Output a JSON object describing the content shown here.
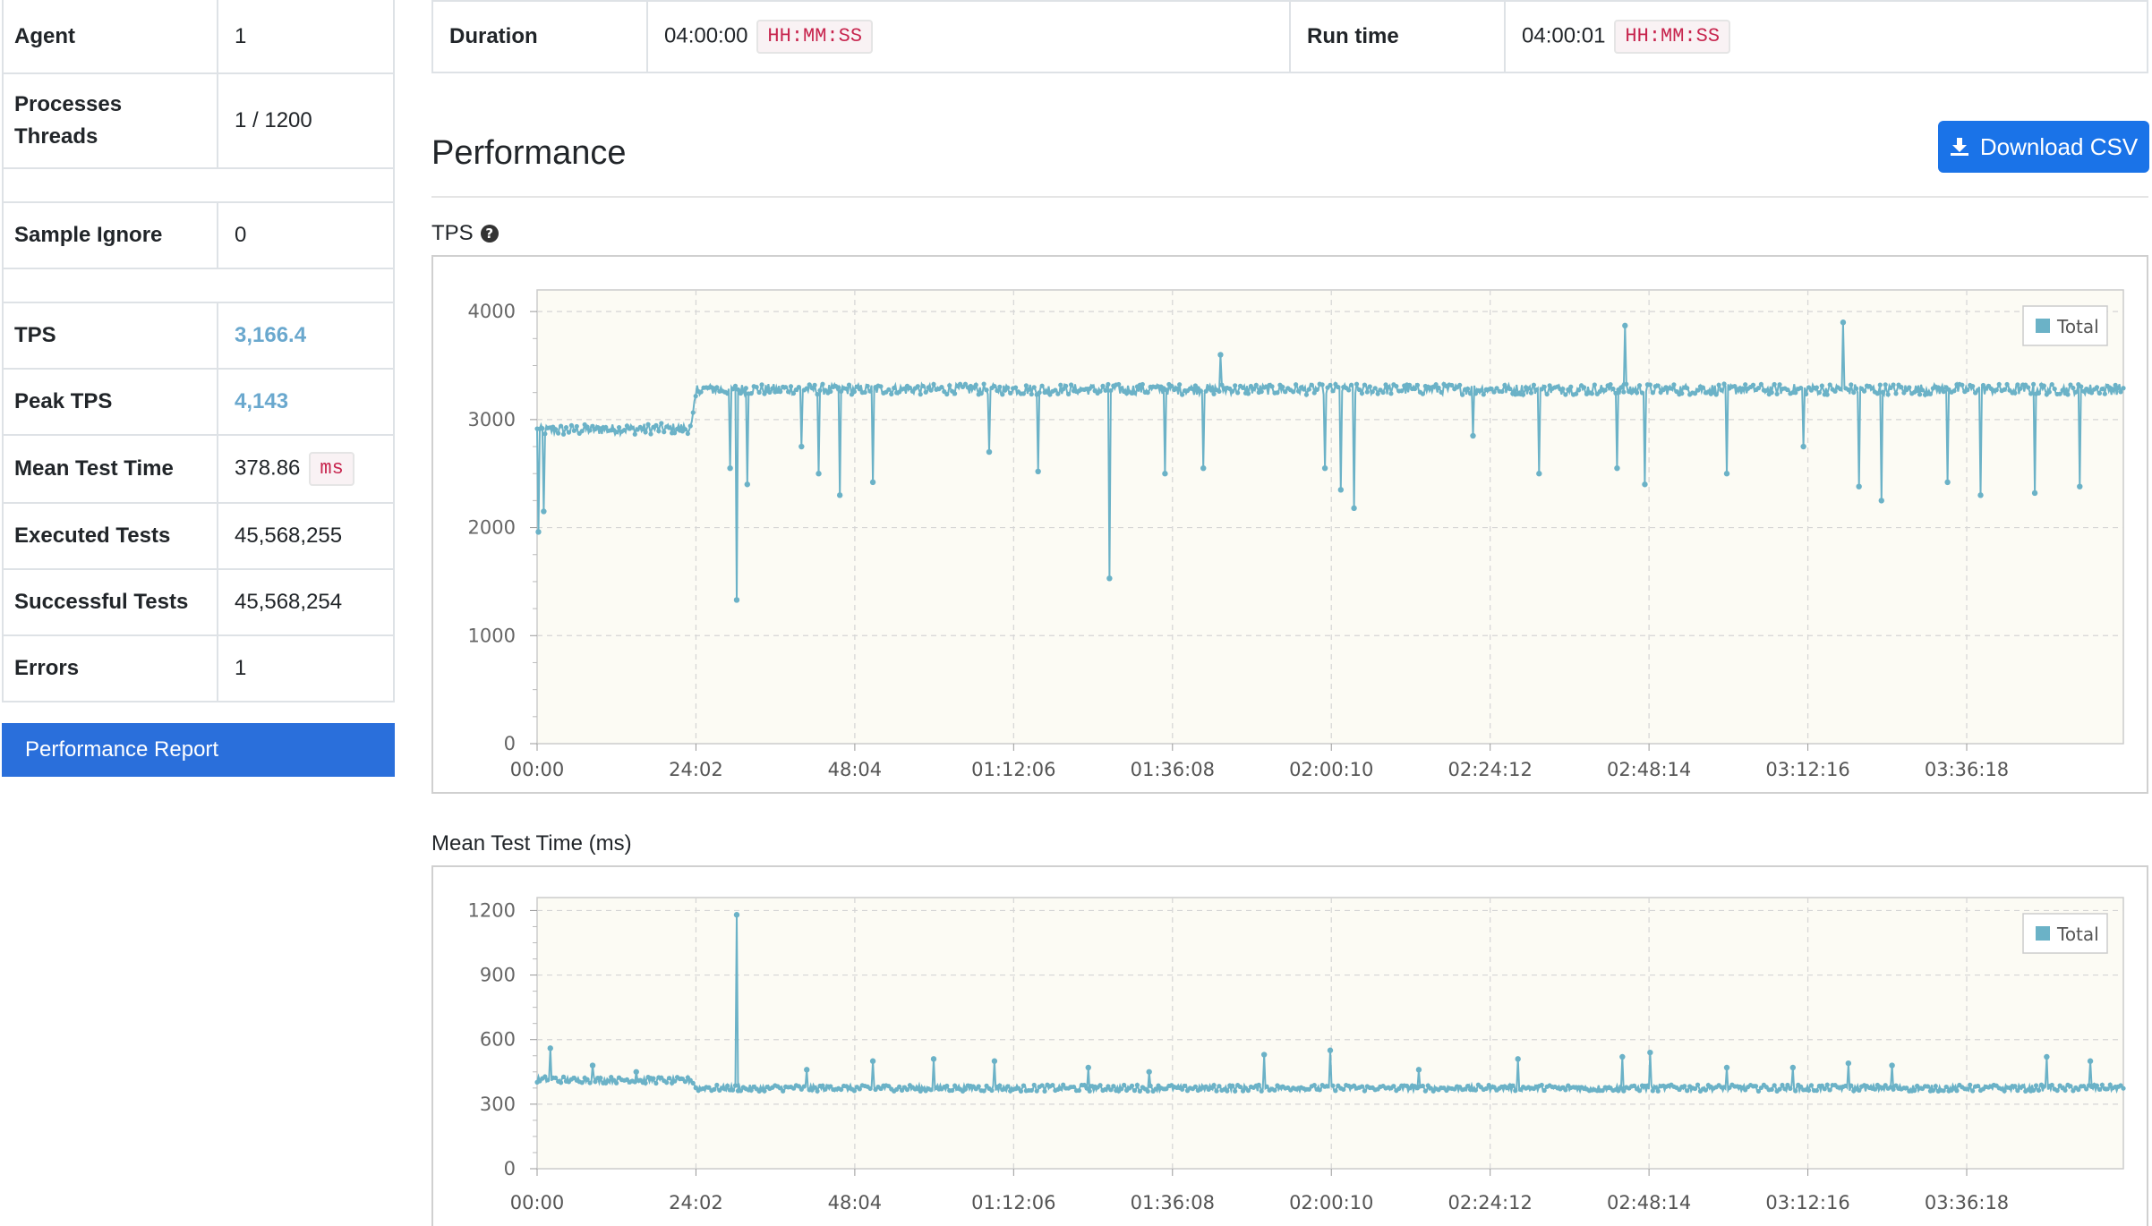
{
  "summary": {
    "agent": {
      "label": "Agent",
      "value": "1"
    },
    "processes": {
      "label": "Processes Threads",
      "value": "1 / 1200"
    },
    "sample_ignore": {
      "label": "Sample Ignore",
      "value": "0"
    },
    "tps": {
      "label": "TPS",
      "value": "3,166.4"
    },
    "peak_tps": {
      "label": "Peak TPS",
      "value": "4,143"
    },
    "mean_test_time": {
      "label": "Mean Test Time",
      "value": "378.86",
      "unit": "ms"
    },
    "executed_tests": {
      "label": "Executed Tests",
      "value": "45,568,255"
    },
    "successful_tests": {
      "label": "Successful Tests",
      "value": "45,568,254"
    },
    "errors": {
      "label": "Errors",
      "value": "1"
    }
  },
  "performance_report_button": "Performance Report",
  "duration": {
    "label": "Duration",
    "value": "04:00:00",
    "format": "HH:MM:SS"
  },
  "run_time": {
    "label": "Run time",
    "value": "04:00:01",
    "format": "HH:MM:SS"
  },
  "section_title": "Performance",
  "download_csv_label": "Download CSV",
  "icons": {
    "download": "download-icon",
    "help": "question-circle-icon"
  },
  "colors": {
    "series": "#6bb2c7",
    "plot_bg": "#fcfbf4",
    "accent": "#1a73e8"
  },
  "chart_data": [
    {
      "type": "line",
      "title": "TPS",
      "x_ticks": [
        "00:00",
        "24:02",
        "48:04",
        "01:12:06",
        "01:36:08",
        "02:00:10",
        "02:24:12",
        "02:48:14",
        "03:12:16",
        "03:36:18"
      ],
      "y_ticks": [
        0,
        1000,
        2000,
        3000,
        4000
      ],
      "ylim": [
        0,
        4200
      ],
      "x_range_seconds": [
        0,
        14400
      ],
      "legend": "top-right",
      "grid": true,
      "series": [
        {
          "name": "Total",
          "baseline": [
            [
              0,
              2900
            ],
            [
              1400,
              2920
            ],
            [
              1450,
              3280
            ],
            [
              14400,
              3280
            ]
          ],
          "spikes": [
            [
              10,
              1960
            ],
            [
              60,
              2150
            ],
            [
              1750,
              2550
            ],
            [
              1810,
              1330
            ],
            [
              1910,
              2400
            ],
            [
              2400,
              2750
            ],
            [
              2550,
              2500
            ],
            [
              2750,
              2300
            ],
            [
              3050,
              2420
            ],
            [
              4100,
              2700
            ],
            [
              4550,
              2520
            ],
            [
              5200,
              1530
            ],
            [
              5700,
              2500
            ],
            [
              6050,
              2550
            ],
            [
              6200,
              3600
            ],
            [
              7150,
              2550
            ],
            [
              7300,
              2350
            ],
            [
              7420,
              2180
            ],
            [
              8500,
              2850
            ],
            [
              9100,
              2500
            ],
            [
              9800,
              2550
            ],
            [
              9880,
              3870
            ],
            [
              10050,
              2400
            ],
            [
              10800,
              2500
            ],
            [
              11500,
              2750
            ],
            [
              11850,
              3900
            ],
            [
              12000,
              2380
            ],
            [
              12200,
              2250
            ],
            [
              12800,
              2420
            ],
            [
              13100,
              2300
            ],
            [
              13600,
              2320
            ],
            [
              14000,
              2380
            ]
          ]
        }
      ]
    },
    {
      "type": "line",
      "title": "Mean Test Time (ms)",
      "x_ticks": [
        "00:00",
        "24:02",
        "48:04",
        "01:12:06",
        "01:36:08",
        "02:00:10",
        "02:24:12",
        "02:48:14",
        "03:12:16",
        "03:36:18"
      ],
      "y_ticks": [
        0,
        300,
        600,
        900,
        1200
      ],
      "ylim": [
        0,
        1260
      ],
      "x_range_seconds": [
        0,
        14400
      ],
      "legend": "top-right",
      "grid": true,
      "series": [
        {
          "name": "Total",
          "baseline": [
            [
              0,
              415
            ],
            [
              1400,
              410
            ],
            [
              1450,
              375
            ],
            [
              14400,
              375
            ]
          ],
          "spikes": [
            [
              120,
              560
            ],
            [
              500,
              480
            ],
            [
              900,
              450
            ],
            [
              1810,
              1180
            ],
            [
              2450,
              460
            ],
            [
              3050,
              500
            ],
            [
              3600,
              510
            ],
            [
              4150,
              500
            ],
            [
              5000,
              470
            ],
            [
              5550,
              450
            ],
            [
              6600,
              530
            ],
            [
              7200,
              550
            ],
            [
              8000,
              460
            ],
            [
              8900,
              510
            ],
            [
              9850,
              520
            ],
            [
              10100,
              540
            ],
            [
              10800,
              470
            ],
            [
              11400,
              470
            ],
            [
              11900,
              490
            ],
            [
              12300,
              480
            ],
            [
              13700,
              520
            ],
            [
              14100,
              500
            ]
          ]
        }
      ]
    }
  ]
}
